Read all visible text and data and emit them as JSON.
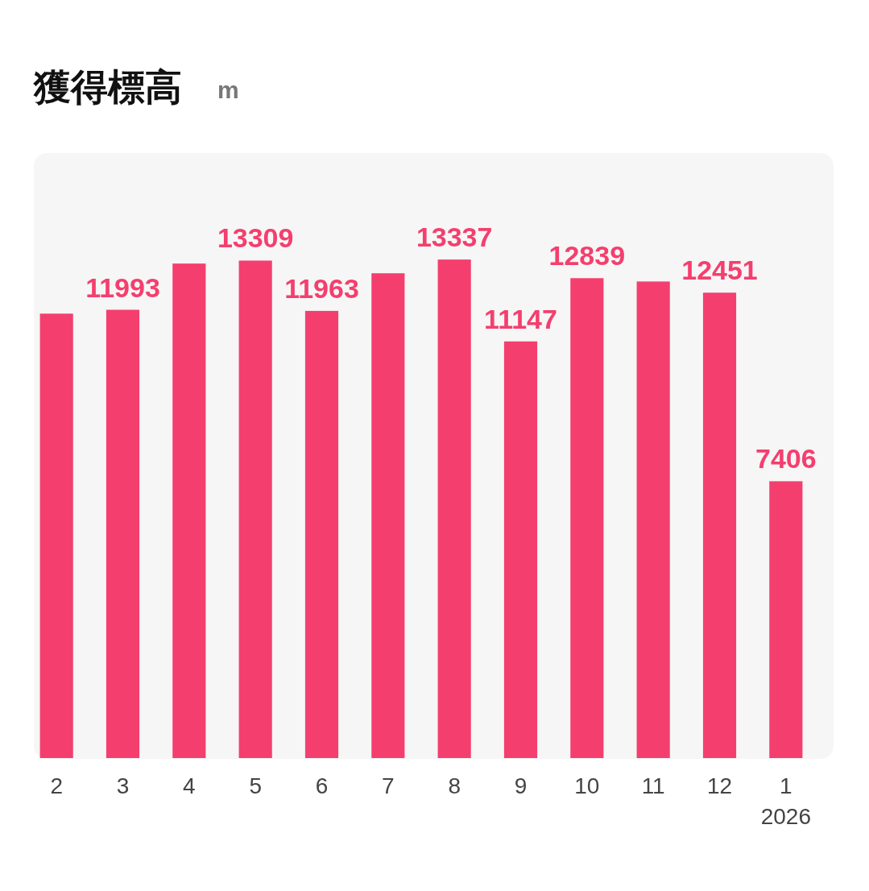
{
  "chart_data": {
    "type": "bar",
    "title": "獲得標高",
    "annotations": [
      "m"
    ],
    "categories": [
      "2",
      "3",
      "4",
      "5",
      "6",
      "7",
      "8",
      "9",
      "10",
      "11",
      "12",
      "1\n2026"
    ],
    "values": [
      11890,
      11993,
      13230,
      13309,
      11963,
      12970,
      13337,
      11147,
      12839,
      12750,
      12451,
      7406
    ],
    "value_labels": [
      null,
      "11993",
      null,
      "13309",
      "11963",
      null,
      "13337",
      "11147",
      "12839",
      null,
      "12451",
      "7406"
    ],
    "color": "#f43f6e"
  }
}
